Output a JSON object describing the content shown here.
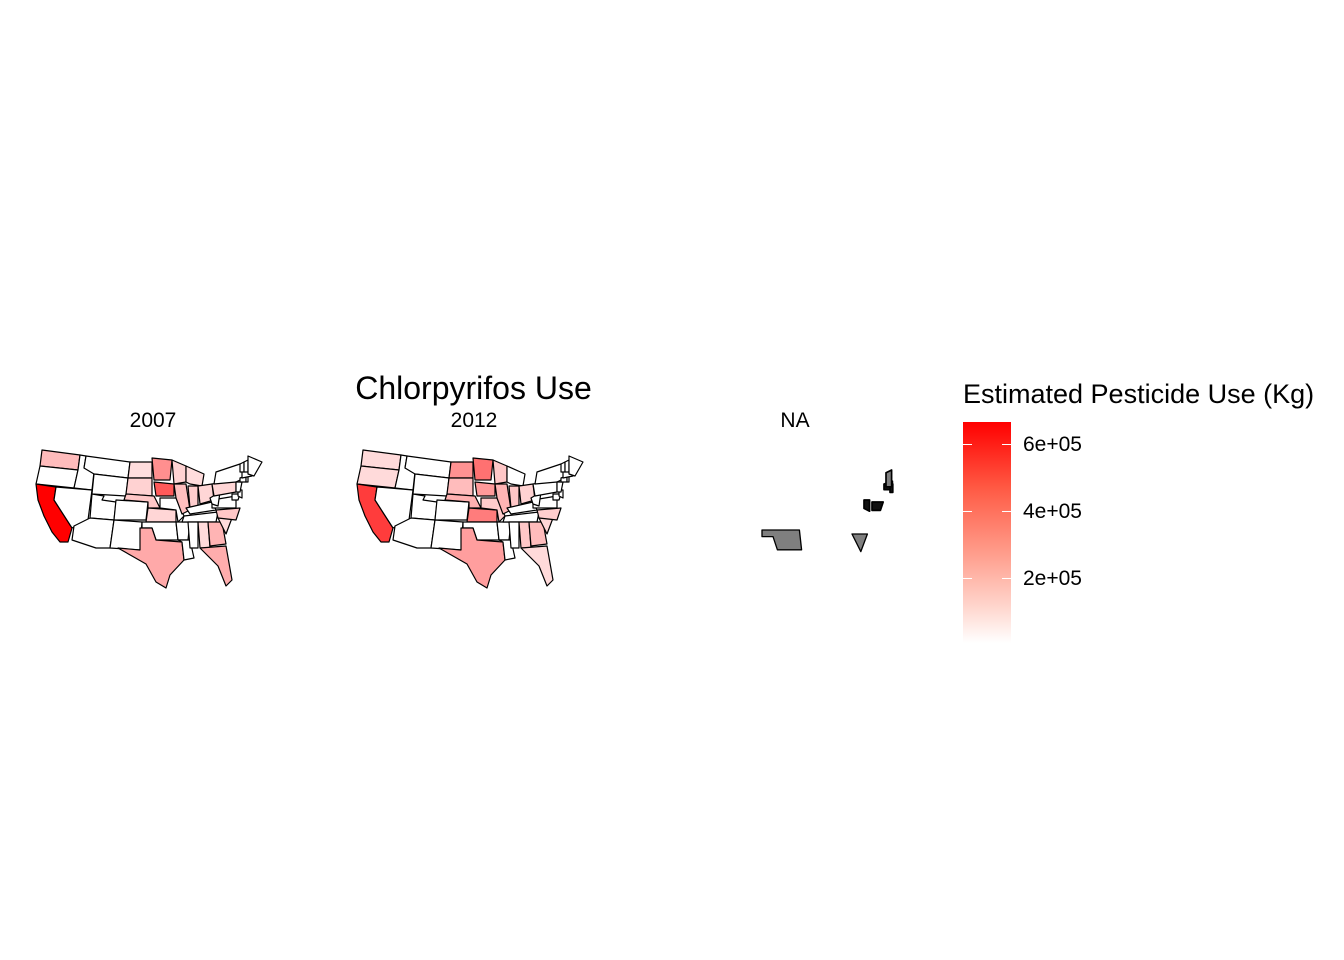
{
  "title": "Chlorpyrifos Use",
  "facets": [
    {
      "label": "2007"
    },
    {
      "label": "2012"
    },
    {
      "label": "NA"
    }
  ],
  "legend": {
    "title": "Estimated Pesticide Use (Kg)",
    "ticks": [
      "6e+05",
      "4e+05",
      "2e+05"
    ],
    "tick_values": [
      600000,
      400000,
      200000
    ],
    "range": [
      0,
      680000
    ],
    "low_color": "#ffffff",
    "high_color": "#ff0000"
  },
  "colors": {
    "outline": "#000000",
    "na_fill": "#7f7f7f"
  },
  "map_data": {
    "2007": {
      "CA": 680000,
      "IA": 440000,
      "MN": 300000,
      "TX": 230000,
      "FL": 220000,
      "GA": 200000,
      "WA": 180000,
      "NE": 150000,
      "KS": 110000,
      "SD": 120000,
      "ND": 90000,
      "WI": 120000,
      "IL": 170000,
      "IN": 130000,
      "MI": 90000,
      "OH": 110000,
      "NC": 150000,
      "AL": 100000,
      "SC": 90000,
      "PA": 110000
    },
    "2012": {
      "CA": 520000,
      "MN": 380000,
      "KS": 350000,
      "ND": 290000,
      "TX": 260000,
      "NE": 210000,
      "IA": 270000,
      "SD": 180000,
      "IL": 200000,
      "GA": 180000,
      "AL": 150000,
      "FL": 100000,
      "IN": 150000,
      "OH": 120000,
      "NC": 130000,
      "WA": 100000,
      "OR": 100000,
      "WI": 150000,
      "MO": 140000,
      "SC": 110000
    },
    "NA": [
      "OK",
      "SC",
      "DE",
      "MD",
      "CT",
      "RI",
      "NH"
    ]
  }
}
